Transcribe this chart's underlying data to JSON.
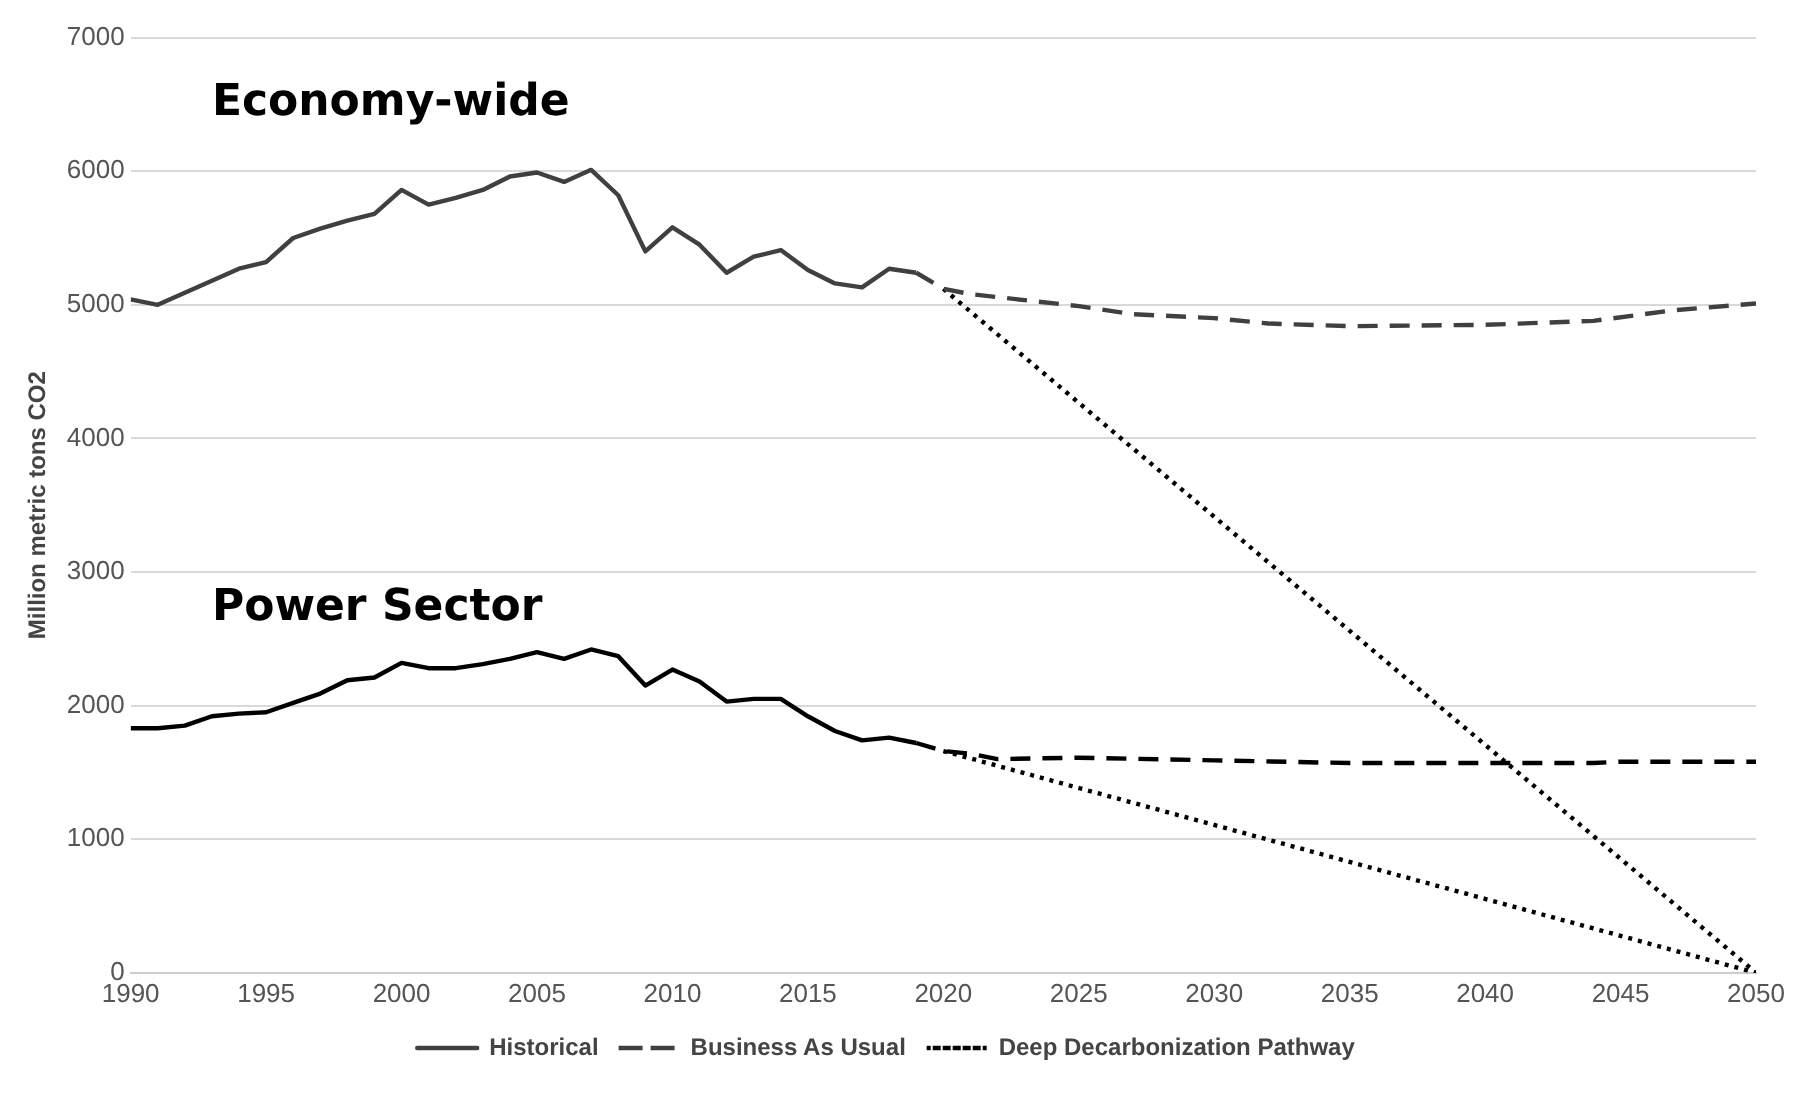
{
  "chart_data": {
    "type": "line",
    "ylabel": "Million metric tons CO2",
    "xlim": [
      1990,
      2050
    ],
    "xticks": [
      1990,
      1995,
      2000,
      2005,
      2010,
      2015,
      2020,
      2025,
      2030,
      2035,
      2040,
      2045,
      2050
    ],
    "ylim": [
      0,
      7000
    ],
    "yticks": [
      0,
      1000,
      2000,
      3000,
      4000,
      5000,
      6000,
      7000
    ],
    "grid": "y",
    "legend": "bottom",
    "marker": "none",
    "annotations": [
      "Economy-wide",
      "Power Sector"
    ],
    "series": [
      {
        "name": "Historical",
        "color": "#404040",
        "line_style": "solid",
        "x": [
          1990,
          1991,
          1992,
          1993,
          1994,
          1995,
          1996,
          1997,
          1998,
          1999,
          2000,
          2001,
          2002,
          2003,
          2004,
          2005,
          2006,
          2007,
          2008,
          2009,
          2010,
          2011,
          2012,
          2013,
          2014,
          2015,
          2016,
          2017,
          2018,
          2019
        ],
        "values": [
          5040,
          5000,
          5090,
          5180,
          5270,
          5320,
          5500,
          5570,
          5630,
          5680,
          5860,
          5750,
          5800,
          5860,
          5960,
          5990,
          5920,
          6010,
          5820,
          5400,
          5580,
          5450,
          5240,
          5360,
          5410,
          5260,
          5160,
          5130,
          5270,
          5240
        ]
      },
      {
        "color": "#000000",
        "line_style": "solid",
        "x": [
          1990,
          1991,
          1992,
          1993,
          1994,
          1995,
          1996,
          1997,
          1998,
          1999,
          2000,
          2001,
          2002,
          2003,
          2004,
          2005,
          2006,
          2007,
          2008,
          2009,
          2010,
          2011,
          2012,
          2013,
          2014,
          2015,
          2016,
          2017,
          2018,
          2019
        ],
        "values": [
          1830,
          1830,
          1850,
          1920,
          1940,
          1950,
          2020,
          2090,
          2190,
          2210,
          2320,
          2280,
          2280,
          2310,
          2350,
          2400,
          2350,
          2420,
          2370,
          2150,
          2270,
          2180,
          2030,
          2050,
          2050,
          1920,
          1810,
          1740,
          1760,
          1720
        ]
      },
      {
        "name": "Business As Usual",
        "color": "#404040",
        "line_style": "dashed",
        "x": [
          2019,
          2020,
          2021,
          2025,
          2027,
          2030,
          2032,
          2035,
          2040,
          2044,
          2047,
          2050
        ],
        "values": [
          5240,
          5120,
          5080,
          4990,
          4930,
          4900,
          4860,
          4840,
          4850,
          4880,
          4960,
          5010
        ]
      },
      {
        "color": "#000000",
        "line_style": "dashed",
        "x": [
          2019,
          2020,
          2021,
          2022,
          2025,
          2030,
          2035,
          2040,
          2044,
          2045,
          2050
        ],
        "values": [
          1720,
          1660,
          1640,
          1600,
          1610,
          1590,
          1570,
          1570,
          1570,
          1580,
          1580
        ]
      },
      {
        "name": "Deep Decarbonization Pathway",
        "color": "#000000",
        "line_style": "dotted",
        "x": [
          2020,
          2050
        ],
        "values": [
          5120,
          0
        ]
      },
      {
        "color": "#000000",
        "line_style": "dotted",
        "x": [
          2020,
          2050
        ],
        "values": [
          1660,
          0
        ]
      }
    ]
  }
}
